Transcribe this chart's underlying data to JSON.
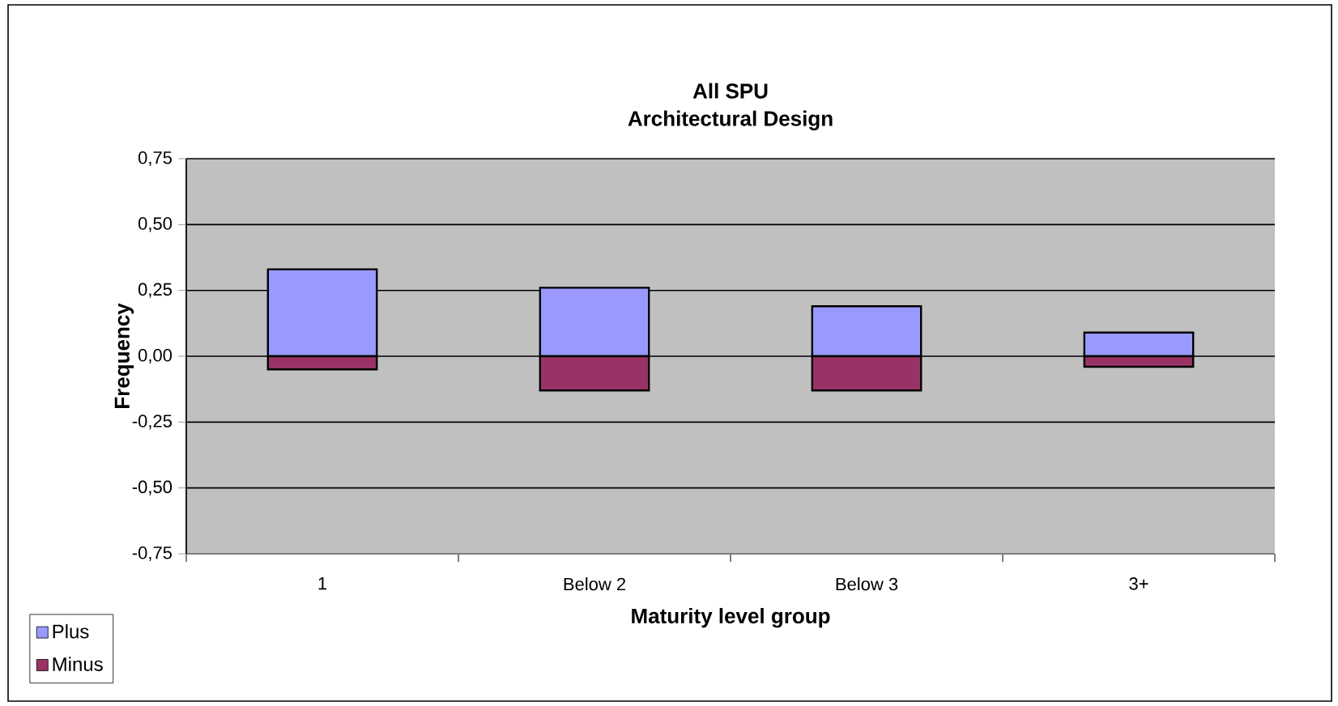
{
  "chart_data": {
    "type": "bar",
    "title": "All SPU",
    "subtitle": "Architectural Design",
    "xlabel": "Maturity level group",
    "ylabel": "Frequency",
    "categories": [
      "1",
      "Below  2",
      "Below  3",
      "3+"
    ],
    "series": [
      {
        "name": "Plus",
        "color": "#9999ff",
        "values": [
          0.33,
          0.26,
          0.19,
          0.09
        ]
      },
      {
        "name": "Minus",
        "color": "#993366",
        "values": [
          -0.05,
          -0.13,
          -0.13,
          -0.04
        ]
      }
    ],
    "stacked": true,
    "ylim": [
      -0.75,
      0.75
    ],
    "yticks": [
      {
        "value": -0.75,
        "label": "-0,75"
      },
      {
        "value": -0.5,
        "label": "-0,50"
      },
      {
        "value": -0.25,
        "label": "-0,25"
      },
      {
        "value": 0,
        "label": "0,00"
      },
      {
        "value": 0.25,
        "label": "0,25"
      },
      {
        "value": 0.5,
        "label": "0,50"
      },
      {
        "value": 0.75,
        "label": "0,75"
      }
    ],
    "grid": "y",
    "legend": "bottom left"
  }
}
